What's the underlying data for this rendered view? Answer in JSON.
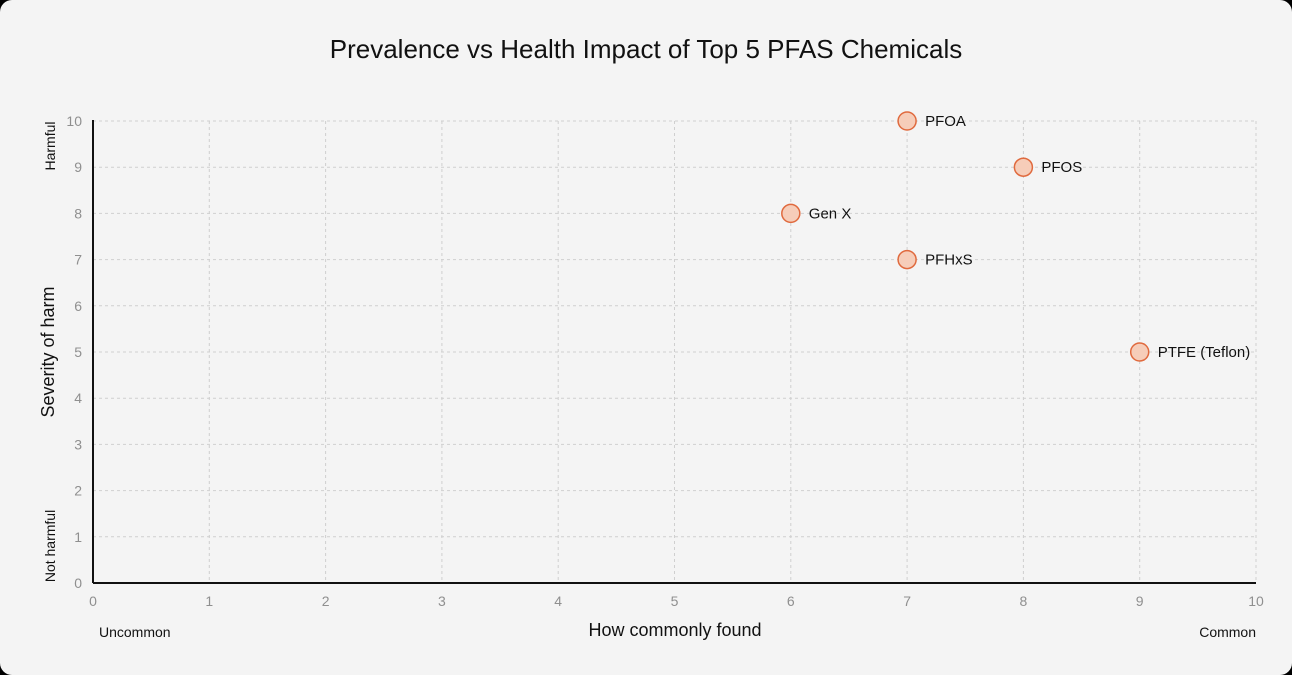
{
  "chart_data": {
    "type": "scatter",
    "title": "Prevalence vs Health Impact of Top 5 PFAS Chemicals",
    "xlabel": "How commonly found",
    "ylabel": "Severity of harm",
    "xlim": [
      0,
      10
    ],
    "ylim": [
      0,
      10
    ],
    "x_ticks": [
      "0",
      "1",
      "2",
      "3",
      "4",
      "5",
      "6",
      "7",
      "8",
      "9",
      "10"
    ],
    "y_ticks": [
      "0",
      "1",
      "2",
      "3",
      "4",
      "5",
      "6",
      "7",
      "8",
      "9",
      "10"
    ],
    "x_low_label": "Uncommon",
    "x_high_label": "Common",
    "y_low_label": "Not harmful",
    "y_high_label": "Harmful",
    "grid": true,
    "legend": "none",
    "colors": {
      "point_fill": "#f6cdb9",
      "point_stroke": "#e06a3e"
    },
    "points": [
      {
        "label": "PFOA",
        "x": 7,
        "y": 10
      },
      {
        "label": "PFOS",
        "x": 8,
        "y": 9
      },
      {
        "label": "Gen X",
        "x": 6,
        "y": 8
      },
      {
        "label": "PFHxS",
        "x": 7,
        "y": 7
      },
      {
        "label": "PTFE (Teflon)",
        "x": 9,
        "y": 5
      }
    ]
  }
}
